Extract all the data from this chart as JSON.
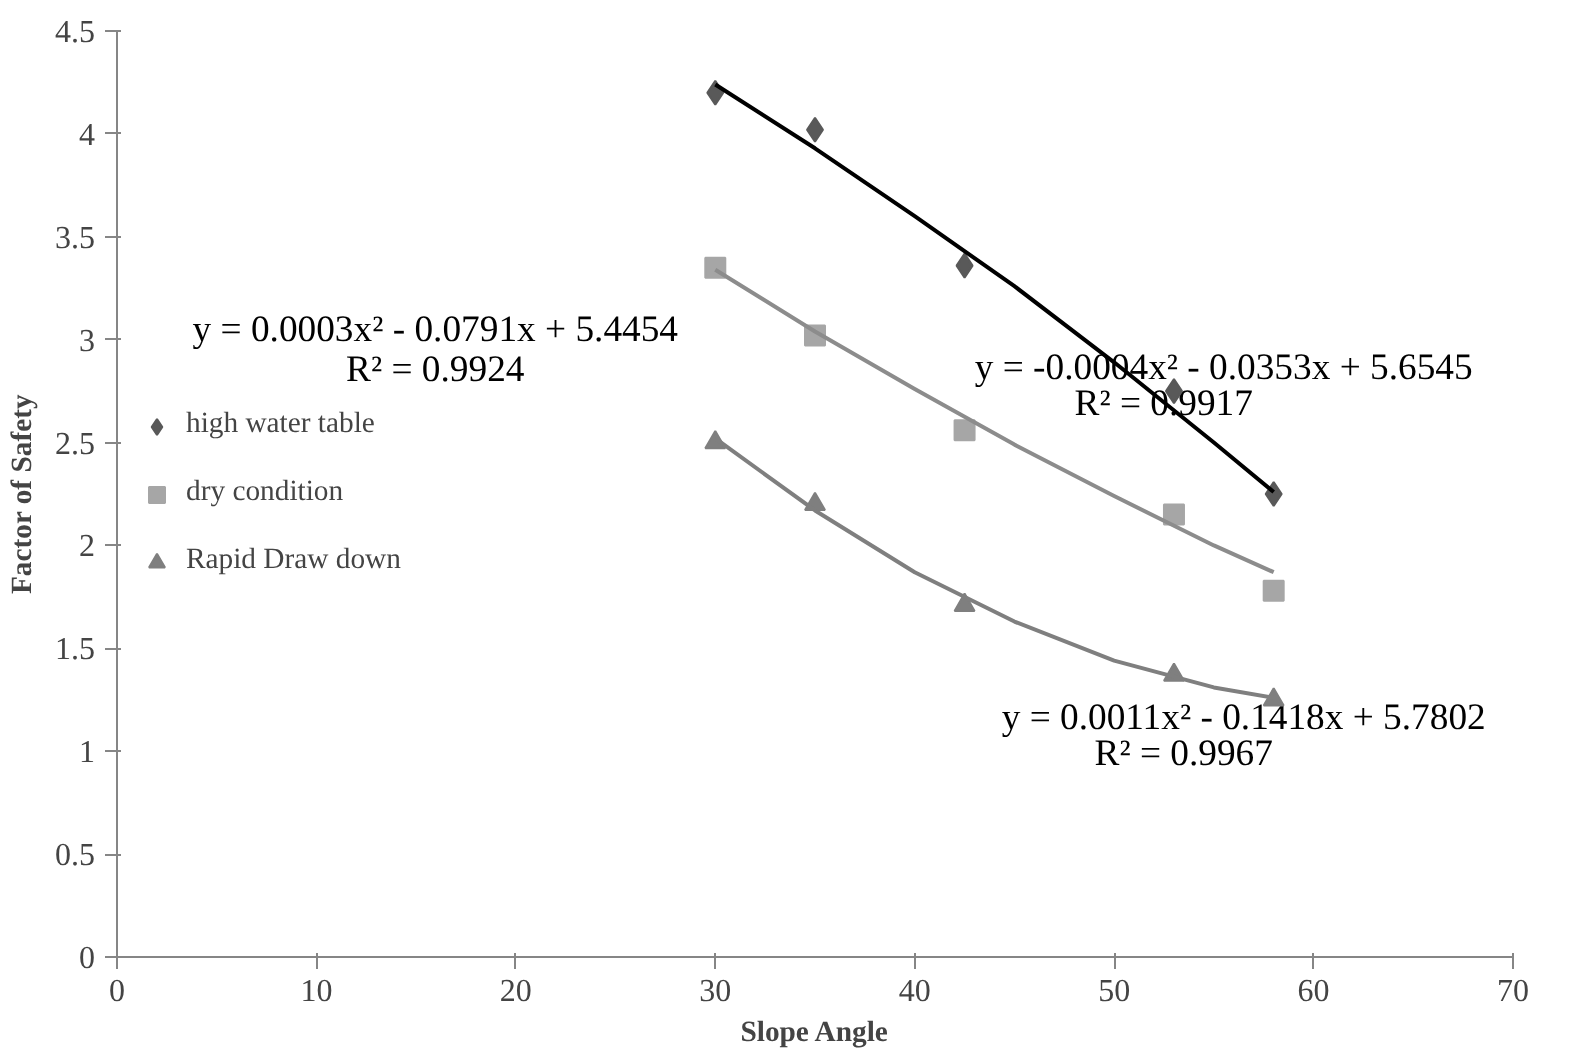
{
  "chart_data": {
    "type": "scatter",
    "xlabel": "Slope Angle",
    "ylabel": "Factor of Safety",
    "xlim": [
      0,
      70
    ],
    "xticks": [
      0,
      10,
      20,
      30,
      40,
      50,
      60,
      70
    ],
    "ylim": [
      0,
      4.5
    ],
    "yticks": [
      0,
      0.5,
      1,
      1.5,
      2,
      2.5,
      3,
      3.5,
      4,
      4.5
    ],
    "grid": false,
    "legend": "left",
    "x": [
      30,
      35,
      42.5,
      53,
      58
    ],
    "series": [
      {
        "name": "high water table",
        "marker": "diamond",
        "color": "#595959",
        "values": [
          4.2,
          4.02,
          3.36,
          2.75,
          2.25
        ]
      },
      {
        "name": "dry condition",
        "marker": "square",
        "color": "#a6a6a6",
        "values": [
          3.35,
          3.02,
          2.56,
          2.15,
          1.78
        ]
      },
      {
        "name": "Rapid Draw down",
        "marker": "triangle",
        "color": "#7f7f7f",
        "values": [
          2.5,
          2.2,
          1.71,
          1.37,
          1.25
        ]
      },
      {
        "type": "line",
        "color": "#000000",
        "x": [
          30,
          35,
          40,
          45,
          50,
          55,
          58
        ],
        "values": [
          4.24,
          3.93,
          3.6,
          3.26,
          2.89,
          2.5,
          2.26
        ]
      },
      {
        "type": "line",
        "color": "#8c8c8c",
        "x": [
          30,
          35,
          40,
          45,
          50,
          55,
          58
        ],
        "values": [
          3.34,
          3.04,
          2.76,
          2.49,
          2.24,
          2.0,
          1.87
        ]
      },
      {
        "type": "line",
        "color": "#7f7f7f",
        "x": [
          30,
          35,
          40,
          45,
          50,
          55,
          58
        ],
        "values": [
          2.52,
          2.17,
          1.87,
          1.63,
          1.44,
          1.31,
          1.26
        ]
      }
    ],
    "annotations": [
      "y = -0.0004x² - 0.0353x + 5.6545",
      "R² = 0.9917",
      "y = 0.0003x² - 0.0791x + 5.4454",
      "R² = 0.9924",
      "y = 0.0011x² - 0.1418x + 5.7802",
      "R² = 0.9967"
    ]
  }
}
